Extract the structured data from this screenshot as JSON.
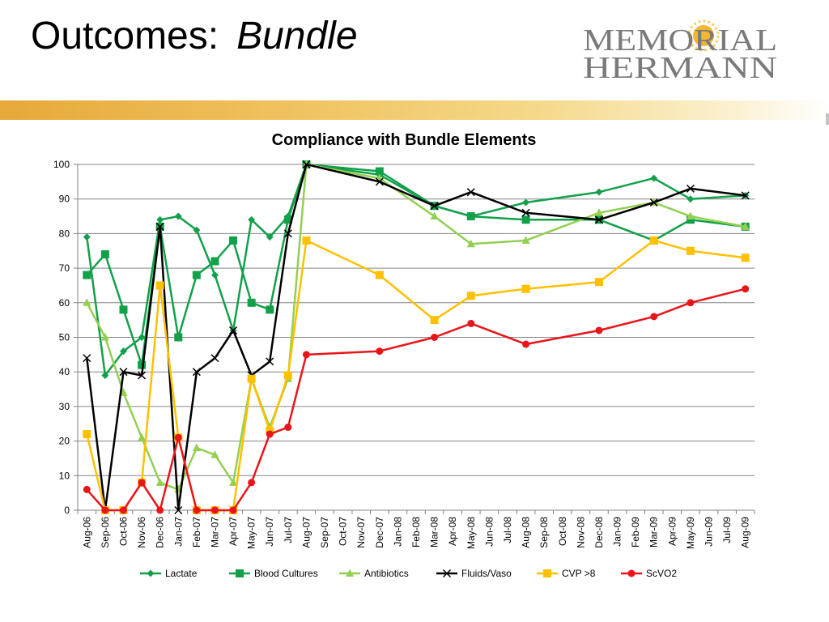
{
  "slide": {
    "title_main": "Outcomes:",
    "title_accent": "Bundle"
  },
  "logo": {
    "line1": "MEMORIAL",
    "line2": "HERMANN"
  },
  "colors": {
    "band_start": "#e6a93a",
    "band_end": "#ffffff",
    "logo_text": "#7a7a7a",
    "logo_sun": "#f2b632"
  },
  "chart_data": {
    "type": "line",
    "title": "Compliance with Bundle Elements",
    "xlabel": "",
    "ylabel": "",
    "ylim": [
      0,
      100
    ],
    "yticks": [
      0,
      10,
      20,
      30,
      40,
      50,
      60,
      70,
      80,
      90,
      100
    ],
    "grid": true,
    "legend_position": "bottom",
    "categories": [
      "Aug-06",
      "Sep-06",
      "Oct-06",
      "Nov-06",
      "Dec-06",
      "Jan-07",
      "Feb-07",
      "Mar-07",
      "Apr-07",
      "May-07",
      "Jun-07",
      "Jul-07",
      "Aug-07",
      "Sep-07",
      "Oct-07",
      "Nov-07",
      "Dec-07",
      "Jan-08",
      "Feb-08",
      "Mar-08",
      "Apr-08",
      "May-08",
      "Jun-08",
      "Jul-08",
      "Aug-08",
      "Sep-08",
      "Oct-08",
      "Nov-08",
      "Dec-08",
      "Jan-09",
      "Feb-09",
      "Mar-09",
      "Apr-09",
      "May-09",
      "Jun-09",
      "Jul-09",
      "Aug-09"
    ],
    "series": [
      {
        "name": "Lactate",
        "color": "#12a04a",
        "marker": "diamond",
        "values": [
          79,
          39,
          46,
          50,
          84,
          85,
          81,
          68,
          52,
          84,
          79,
          85,
          100,
          null,
          null,
          null,
          97,
          null,
          null,
          88,
          null,
          85,
          null,
          null,
          89,
          null,
          null,
          null,
          92,
          null,
          null,
          96,
          null,
          90,
          null,
          null,
          91
        ]
      },
      {
        "name": "Blood Cultures",
        "color": "#12a04a",
        "marker": "square",
        "values": [
          68,
          74,
          58,
          42,
          82,
          50,
          68,
          72,
          78,
          60,
          58,
          84,
          100,
          null,
          null,
          null,
          98,
          null,
          null,
          88,
          null,
          85,
          null,
          null,
          84,
          null,
          null,
          null,
          84,
          null,
          null,
          78,
          null,
          84,
          null,
          null,
          82
        ]
      },
      {
        "name": "Antibiotics",
        "color": "#92d050",
        "marker": "triangle",
        "values": [
          60,
          50,
          34,
          21,
          8,
          6,
          18,
          16,
          8,
          38,
          24,
          38,
          100,
          null,
          null,
          null,
          96,
          null,
          null,
          85,
          null,
          77,
          null,
          null,
          78,
          null,
          null,
          null,
          86,
          null,
          null,
          89,
          null,
          85,
          null,
          null,
          82
        ]
      },
      {
        "name": "Fluids/Vaso",
        "color": "#000000",
        "marker": "x",
        "values": [
          44,
          0,
          40,
          39,
          82,
          0,
          40,
          44,
          52,
          39,
          43,
          80,
          100,
          null,
          null,
          null,
          95,
          null,
          null,
          88,
          null,
          92,
          null,
          null,
          86,
          null,
          null,
          null,
          84,
          null,
          null,
          89,
          null,
          93,
          null,
          null,
          91
        ]
      },
      {
        "name": "CVP >8",
        "color": "#ffc000",
        "marker": "square",
        "values": [
          22,
          0,
          0,
          8,
          65,
          21,
          0,
          0,
          0,
          38,
          23,
          39,
          78,
          null,
          null,
          null,
          68,
          null,
          null,
          55,
          null,
          62,
          null,
          null,
          64,
          null,
          null,
          null,
          66,
          null,
          null,
          78,
          null,
          75,
          null,
          null,
          73
        ]
      },
      {
        "name": "ScVO2",
        "color": "#e8151b",
        "marker": "circle",
        "values": [
          6,
          0,
          0,
          8,
          0,
          21,
          0,
          0,
          0,
          8,
          22,
          24,
          45,
          null,
          null,
          null,
          46,
          null,
          null,
          50,
          null,
          54,
          null,
          null,
          48,
          null,
          null,
          null,
          52,
          null,
          null,
          56,
          null,
          60,
          null,
          null,
          64
        ]
      }
    ]
  }
}
